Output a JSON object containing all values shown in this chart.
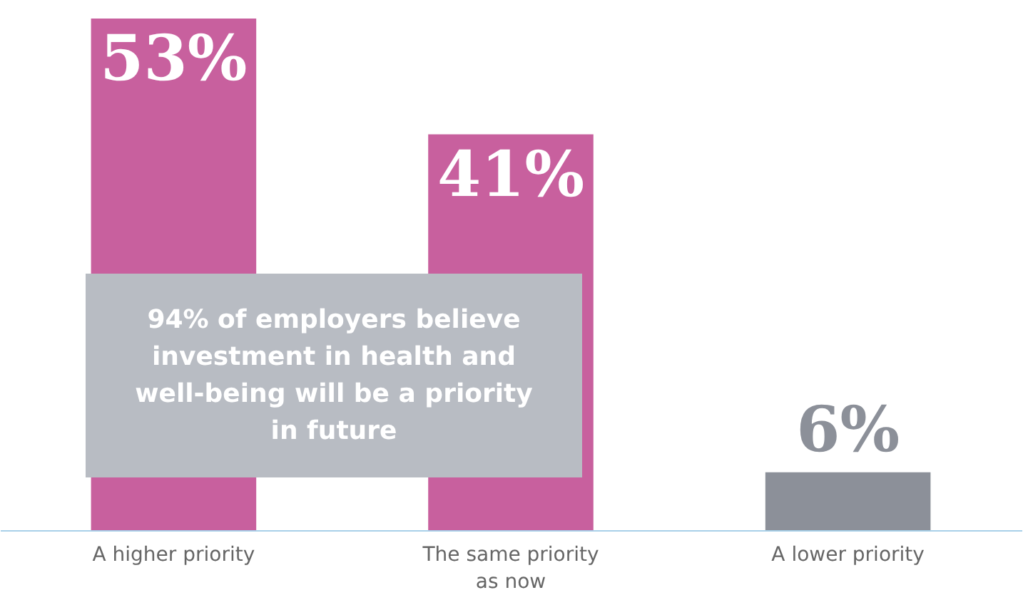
{
  "chart_data": {
    "type": "bar",
    "categories": [
      "A higher priority",
      "The same priority as now",
      "A lower priority"
    ],
    "values": [
      53,
      41,
      6
    ],
    "colors": [
      "#c8609e",
      "#c8609e",
      "#8c9099"
    ],
    "value_labels": [
      "53%",
      "41%",
      "6%"
    ],
    "annotations": [
      "94% of employers believe investment in health and well-being will be a priority in future"
    ],
    "grid": false
  }
}
